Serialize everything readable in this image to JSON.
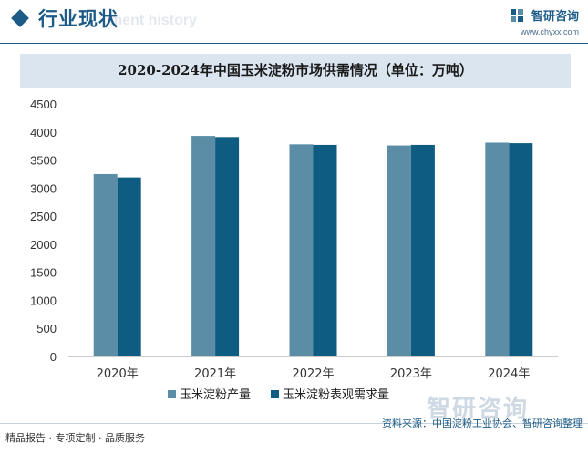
{
  "header": {
    "section_title": "行业现状",
    "ghost_title": "ment history",
    "brand_name": "智研咨询",
    "brand_url": "www.chyxx.com"
  },
  "chart_data": {
    "type": "bar",
    "title": "2020-2024年中国玉米淀粉市场供需情况（单位：万吨）",
    "categories": [
      "2020年",
      "2021年",
      "2022年",
      "2023年",
      "2024年"
    ],
    "series": [
      {
        "name": "玉米淀粉产量",
        "values": [
          3250,
          3930,
          3780,
          3760,
          3810
        ],
        "color": "#5b8ea6"
      },
      {
        "name": "玉米淀粉表观需求量",
        "values": [
          3190,
          3910,
          3770,
          3770,
          3800
        ],
        "color": "#0e5c82"
      }
    ],
    "ylim": [
      0,
      4500
    ],
    "yticks": [
      "0",
      "500",
      "1000",
      "1500",
      "2000",
      "2500",
      "3000",
      "3500",
      "4000",
      "4500"
    ],
    "legend_position": "bottom"
  },
  "footer": {
    "left_text": "精品报告 · 专项定制 · 品质服务",
    "source_text": "资料来源：中国淀粉工业协会、智研咨询整理",
    "watermark": "智研咨询"
  }
}
